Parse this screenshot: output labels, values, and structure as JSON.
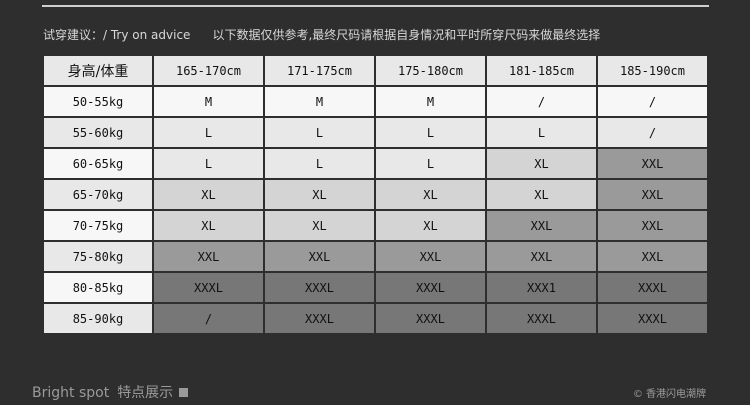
{
  "advice": {
    "label": "试穿建议：/ Try on advice",
    "note": "以下数据仅供参考,最终尺码请根据自身情况和平时所穿尺码来做最终选择"
  },
  "tones": {
    "white": "#f7f7f7",
    "light": "#e8e8e8",
    "mid": "#d4d4d4",
    "dark": "#9a9a9a",
    "darkest": "#777777"
  },
  "table": {
    "corner": "身高/体重",
    "columns": [
      "165-170cm",
      "171-175cm",
      "175-180cm",
      "181-185cm",
      "185-190cm"
    ],
    "rows": [
      {
        "weight": "50-55kg",
        "sizes": [
          "M",
          "M",
          "M",
          "/",
          "/"
        ],
        "tones": [
          "white",
          "white",
          "white",
          "white",
          "white"
        ]
      },
      {
        "weight": "55-60kg",
        "sizes": [
          "L",
          "L",
          "L",
          "L",
          "/"
        ],
        "tones": [
          "light",
          "light",
          "light",
          "light",
          "light"
        ]
      },
      {
        "weight": "60-65kg",
        "sizes": [
          "L",
          "L",
          "L",
          "XL",
          "XXL"
        ],
        "tones": [
          "light",
          "light",
          "light",
          "mid",
          "dark"
        ]
      },
      {
        "weight": "65-70kg",
        "sizes": [
          "XL",
          "XL",
          "XL",
          "XL",
          "XXL"
        ],
        "tones": [
          "mid",
          "mid",
          "mid",
          "mid",
          "dark"
        ]
      },
      {
        "weight": "70-75kg",
        "sizes": [
          "XL",
          "XL",
          "XL",
          "XXL",
          "XXL"
        ],
        "tones": [
          "mid",
          "mid",
          "mid",
          "dark",
          "dark"
        ]
      },
      {
        "weight": "75-80kg",
        "sizes": [
          "XXL",
          "XXL",
          "XXL",
          "XXL",
          "XXL"
        ],
        "tones": [
          "dark",
          "dark",
          "dark",
          "dark",
          "dark"
        ]
      },
      {
        "weight": "80-85kg",
        "sizes": [
          "XXXL",
          "XXXL",
          "XXXL",
          "XXX1",
          "XXXL"
        ],
        "tones": [
          "darkest",
          "darkest",
          "darkest",
          "darkest",
          "darkest"
        ]
      },
      {
        "weight": "85-90kg",
        "sizes": [
          "/",
          "XXXL",
          "XXXL",
          "XXXL",
          "XXXL"
        ],
        "tones": [
          "darkest",
          "darkest",
          "darkest",
          "darkest",
          "darkest"
        ]
      }
    ]
  },
  "footer": {
    "title_en": "Bright spot",
    "title_cn": "特点展示",
    "brand": "© 香港闪电潮牌"
  }
}
